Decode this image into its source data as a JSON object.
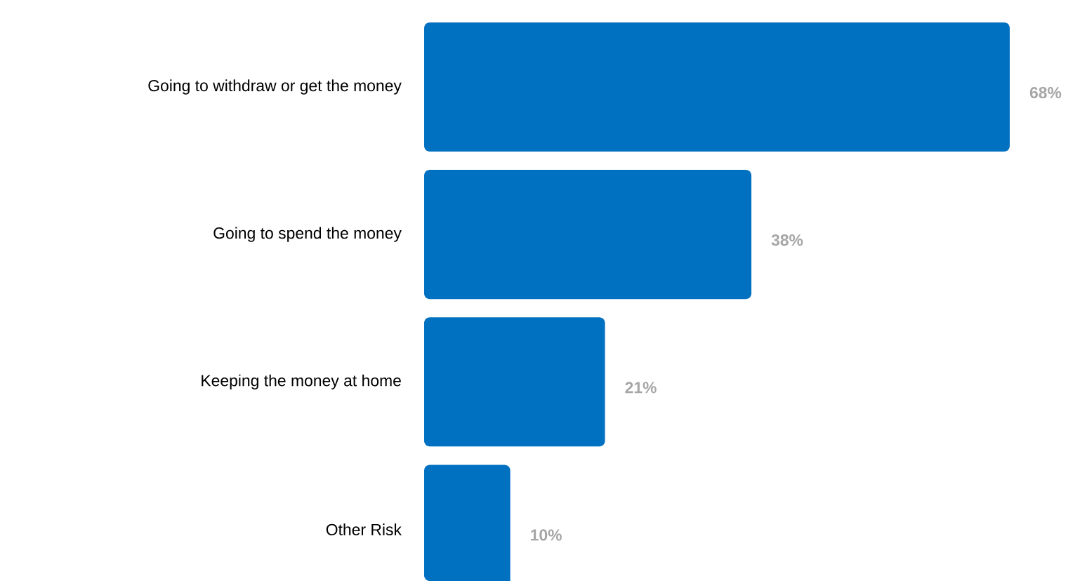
{
  "chart_data": {
    "type": "bar",
    "orientation": "horizontal",
    "categories": [
      "Going to withdraw or get the money",
      "Going to spend the money",
      "Keeping the money at home",
      "Other Risk"
    ],
    "values": [
      68,
      38,
      21,
      10
    ],
    "value_labels": [
      "68%",
      "38%",
      "21%",
      "10%"
    ],
    "color": "#0070c0"
  }
}
